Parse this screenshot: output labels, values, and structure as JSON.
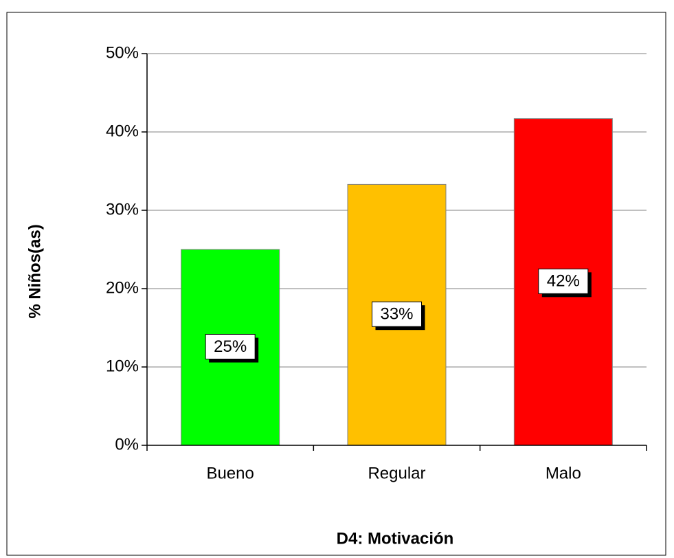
{
  "chart_data": {
    "type": "bar",
    "x_label": "D4: Motivación",
    "y_label": "% Niños(as)",
    "categories": [
      "Bueno",
      "Regular",
      "Malo"
    ],
    "values": [
      25,
      33.3,
      41.7
    ],
    "value_labels": [
      "25%",
      "33%",
      "42%"
    ],
    "colors": [
      "#00ff00",
      "#ffc000",
      "#ff0000"
    ],
    "ylim": [
      0,
      50
    ],
    "yticks": [
      {
        "value": 0,
        "label": "0%"
      },
      {
        "value": 10,
        "label": "10%"
      },
      {
        "value": 20,
        "label": "20%"
      },
      {
        "value": 30,
        "label": "30%"
      },
      {
        "value": 40,
        "label": "40%"
      },
      {
        "value": 50,
        "label": "50%"
      }
    ],
    "grid": true
  }
}
